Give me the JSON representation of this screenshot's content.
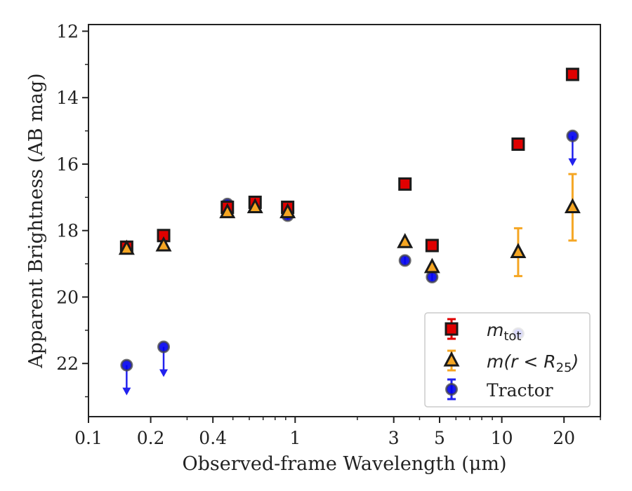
{
  "chart_data": {
    "type": "scatter",
    "xlabel": "Observed-frame Wavelength (μm)",
    "ylabel": "Apparent Brightness (AB mag)",
    "x_scale": "log",
    "xlim": [
      0.1,
      30
    ],
    "ylim": [
      23.6,
      11.8
    ],
    "y_inverted": true,
    "x_ticks": [
      {
        "value": 0.1,
        "label": "0.1"
      },
      {
        "value": 0.2,
        "label": "0.2"
      },
      {
        "value": 0.4,
        "label": "0.4"
      },
      {
        "value": 1,
        "label": "1"
      },
      {
        "value": 3,
        "label": "3"
      },
      {
        "value": 5,
        "label": "5"
      },
      {
        "value": 10,
        "label": "10"
      },
      {
        "value": 20,
        "label": "20"
      }
    ],
    "y_ticks": [
      {
        "value": 12,
        "label": "12"
      },
      {
        "value": 14,
        "label": "14"
      },
      {
        "value": 16,
        "label": "16"
      },
      {
        "value": 18,
        "label": "18"
      },
      {
        "value": 20,
        "label": "20"
      },
      {
        "value": 22,
        "label": "22"
      }
    ],
    "grid": false,
    "legend_position": "bottom-right",
    "series": [
      {
        "name": "m_tot",
        "legend_main": "m",
        "legend_sub": "tot",
        "marker": "square",
        "color": "#e00000",
        "edge": "#1a1a1a",
        "points": [
          {
            "x": 0.153,
            "y": 18.5,
            "err": 0.05
          },
          {
            "x": 0.231,
            "y": 18.15,
            "err": 0.05
          },
          {
            "x": 0.47,
            "y": 17.3,
            "err": 0.05
          },
          {
            "x": 0.64,
            "y": 17.15,
            "err": 0.05
          },
          {
            "x": 0.92,
            "y": 17.3,
            "err": 0.05
          },
          {
            "x": 3.4,
            "y": 16.6,
            "err": 0.05
          },
          {
            "x": 4.6,
            "y": 18.45,
            "err": 0.05
          },
          {
            "x": 12.0,
            "y": 15.4,
            "err": 0.05
          },
          {
            "x": 22.0,
            "y": 13.3,
            "err": 0.05
          }
        ]
      },
      {
        "name": "m(r < R_25)",
        "legend_main": "m(r < R",
        "legend_sub": "25",
        "legend_tail": ")",
        "marker": "triangle",
        "color": "#f5a623",
        "edge": "#1a1a1a",
        "points": [
          {
            "x": 0.153,
            "y": 18.55,
            "err": 0.05
          },
          {
            "x": 0.231,
            "y": 18.45,
            "err": 0.05
          },
          {
            "x": 0.47,
            "y": 17.45,
            "err": 0.05
          },
          {
            "x": 0.64,
            "y": 17.3,
            "err": 0.05
          },
          {
            "x": 0.92,
            "y": 17.45,
            "err": 0.05
          },
          {
            "x": 3.4,
            "y": 18.35,
            "err": 0.05
          },
          {
            "x": 4.6,
            "y": 19.1,
            "err": 0.05
          },
          {
            "x": 12.0,
            "y": 18.65,
            "err": 0.72
          },
          {
            "x": 22.0,
            "y": 17.3,
            "err": 1.0
          }
        ]
      },
      {
        "name": "Tractor",
        "legend_main": "Tractor",
        "marker": "circle",
        "color": "#0000ee",
        "edge": "#444444",
        "points": [
          {
            "x": 0.153,
            "y": 22.05,
            "upper_limit": true
          },
          {
            "x": 0.231,
            "y": 21.5,
            "upper_limit": true
          },
          {
            "x": 0.47,
            "y": 17.2,
            "err": 0.05
          },
          {
            "x": 0.64,
            "y": 17.2,
            "err": 0.05
          },
          {
            "x": 0.92,
            "y": 17.55,
            "err": 0.05
          },
          {
            "x": 3.4,
            "y": 18.9,
            "err": 0.05
          },
          {
            "x": 4.6,
            "y": 19.4,
            "err": 0.05
          },
          {
            "x": 12.0,
            "y": 21.1,
            "err": 0.05
          },
          {
            "x": 22.0,
            "y": 15.15,
            "upper_limit": true
          }
        ]
      }
    ]
  }
}
